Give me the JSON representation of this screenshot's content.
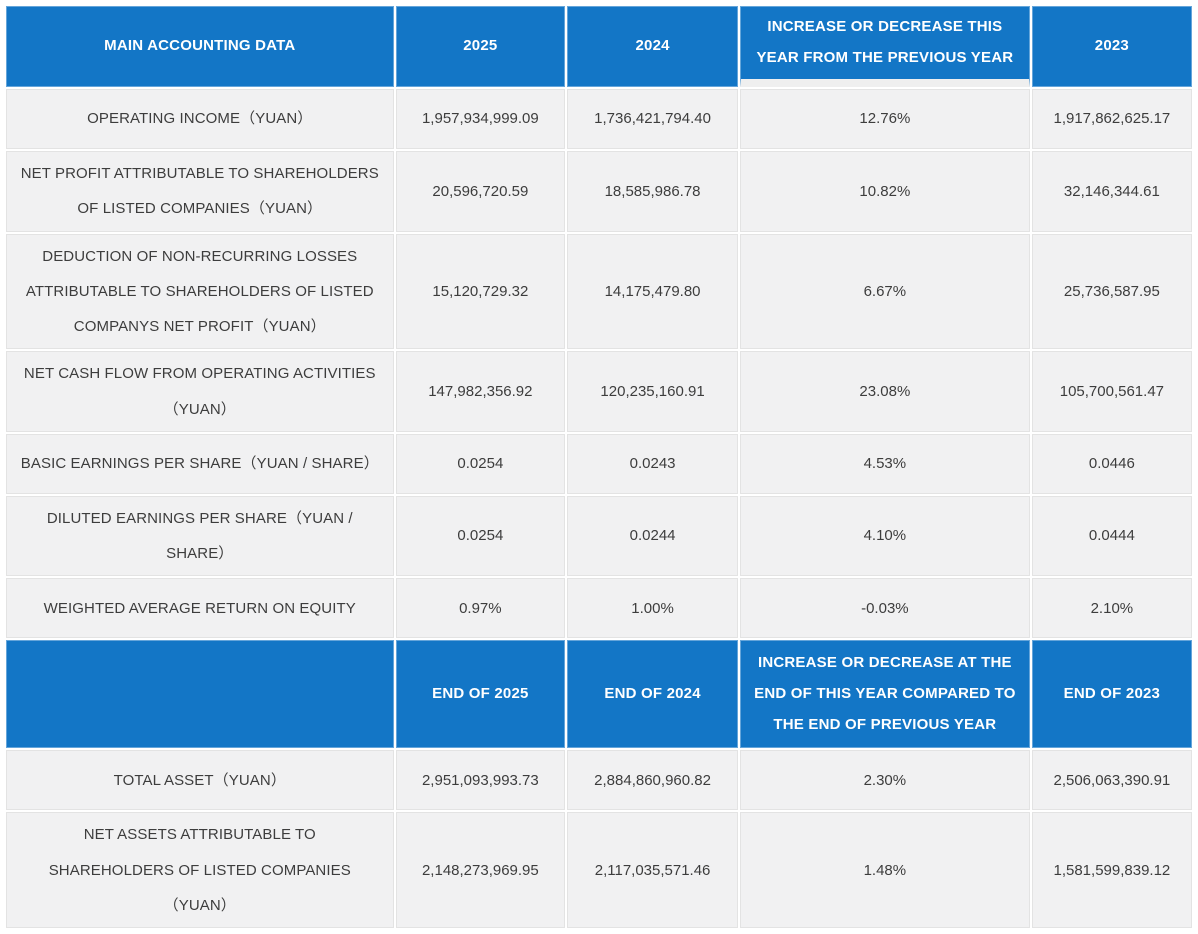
{
  "colors": {
    "header_bg": "#1376C6",
    "header_text": "#FFFFFF",
    "row_bg": "#F1F1F2",
    "body_text": "#3D3D3D",
    "grid_line": "#E3E3E3"
  },
  "section1": {
    "headers": {
      "label": "MAIN ACCOUNTING DATA",
      "y2025": "2025",
      "y2024": "2024",
      "change": "INCREASE OR DECREASE THIS YEAR FROM THE PREVIOUS YEAR",
      "y2023": "2023"
    },
    "rows": [
      {
        "label": "OPERATING INCOME（YUAN）",
        "y2025": "1,957,934,999.09",
        "y2024": "1,736,421,794.40",
        "change": "12.76%",
        "y2023": "1,917,862,625.17"
      },
      {
        "label": "NET PROFIT ATTRIBUTABLE TO SHAREHOLDERS OF LISTED COMPANIES（YUAN）",
        "y2025": "20,596,720.59",
        "y2024": "18,585,986.78",
        "change": "10.82%",
        "y2023": "32,146,344.61"
      },
      {
        "label": "DEDUCTION OF NON-RECURRING LOSSES ATTRIBUTABLE TO SHAREHOLDERS OF LISTED COMPANYS NET PROFIT（YUAN）",
        "y2025": "15,120,729.32",
        "y2024": "14,175,479.80",
        "change": "6.67%",
        "y2023": "25,736,587.95"
      },
      {
        "label": "NET CASH FLOW FROM OPERATING ACTIVITIES（YUAN）",
        "y2025": "147,982,356.92",
        "y2024": "120,235,160.91",
        "change": "23.08%",
        "y2023": "105,700,561.47"
      },
      {
        "label": "BASIC EARNINGS PER SHARE（YUAN / SHARE）",
        "y2025": "0.0254",
        "y2024": "0.0243",
        "change": "4.53%",
        "y2023": "0.0446"
      },
      {
        "label": "DILUTED EARNINGS PER SHARE（YUAN / SHARE）",
        "y2025": "0.0254",
        "y2024": "0.0244",
        "change": "4.10%",
        "y2023": "0.0444"
      },
      {
        "label": "WEIGHTED AVERAGE RETURN ON EQUITY",
        "y2025": "0.97%",
        "y2024": "1.00%",
        "change": "-0.03%",
        "y2023": "2.10%"
      }
    ]
  },
  "section2": {
    "headers": {
      "label": "",
      "end2025": "END OF 2025",
      "end2024": "END OF 2024",
      "change": "INCREASE OR DECREASE AT THE END OF THIS YEAR COMPARED TO THE END OF PREVIOUS YEAR",
      "end2023": "END OF 2023"
    },
    "rows": [
      {
        "label": "TOTAL ASSET（YUAN）",
        "end2025": "2,951,093,993.73",
        "end2024": "2,884,860,960.82",
        "change": "2.30%",
        "end2023": "2,506,063,390.91"
      },
      {
        "label": "NET ASSETS ATTRIBUTABLE TO SHAREHOLDERS OF LISTED COMPANIES（YUAN）",
        "end2025": "2,148,273,969.95",
        "end2024": "2,117,035,571.46",
        "change": "1.48%",
        "end2023": "1,581,599,839.12"
      }
    ]
  }
}
